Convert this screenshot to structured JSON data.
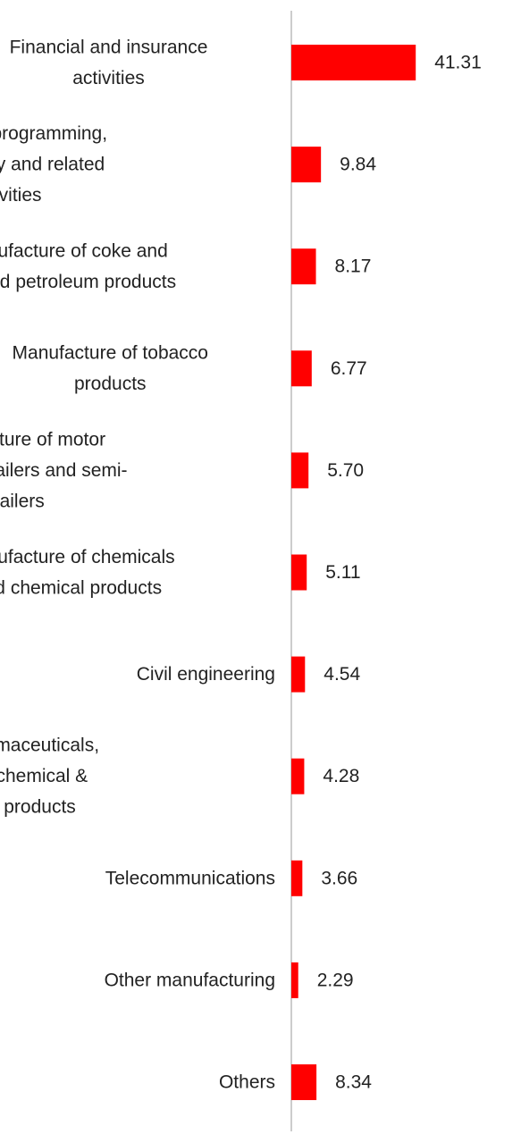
{
  "chart_data": {
    "type": "bar",
    "orientation": "horizontal",
    "categories": [
      [
        "Financial and insurance",
        "activities"
      ],
      [
        "Computer programming,",
        "consultancy and related",
        "activities"
      ],
      [
        "Manufacture of coke and",
        "refined petroleum products"
      ],
      [
        "Manufacture of tobacco",
        "products"
      ],
      [
        "Manufacture of motor",
        "vehicles, trailers and semi-",
        "trailers"
      ],
      [
        "Manufacture of chemicals",
        "and chemical products"
      ],
      [
        "Civil engineering"
      ],
      [
        "Mfg of pharmaceuticals,",
        "medicinal chemical &",
        "botanical products"
      ],
      [
        "Telecommunications"
      ],
      [
        "Other manufacturing"
      ],
      [
        "Others"
      ]
    ],
    "values": [
      41.31,
      9.84,
      8.17,
      6.77,
      5.7,
      5.11,
      4.54,
      4.28,
      3.66,
      2.29,
      8.34
    ],
    "value_labels": [
      "41.31",
      "9.84",
      "8.17",
      "6.77",
      "5.70",
      "5.11",
      "4.54",
      "4.28",
      "3.66",
      "2.29",
      "8.34"
    ],
    "title": "",
    "xlabel": "",
    "ylabel": "",
    "xlim": [
      0,
      42
    ],
    "grid": false,
    "legend": "none",
    "bar_color": "#ff0000",
    "axis_color": "#cccccc"
  }
}
